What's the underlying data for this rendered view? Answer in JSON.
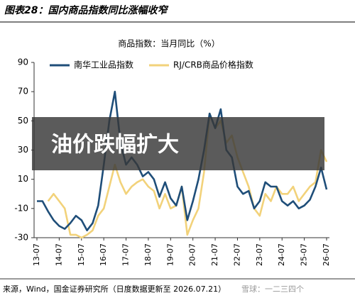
{
  "chart_data": {
    "type": "line",
    "title": "图表28：国内商品指数同比涨幅收窄",
    "ylabel": "商品指数：当月同比（%）",
    "categories": [
      "13-07",
      null,
      null,
      null,
      "14-07",
      null,
      null,
      null,
      "15-07",
      null,
      null,
      null,
      "16-07",
      null,
      null,
      null,
      "17-07",
      null,
      null,
      null,
      "18-07",
      null,
      null,
      null,
      "19-07",
      null,
      null,
      null,
      "20-07",
      null,
      null,
      null,
      "21-07",
      null,
      null,
      null,
      "22-07",
      null,
      null,
      null,
      "23-07",
      null,
      null,
      null,
      "24-07",
      null,
      null,
      null,
      "25-07",
      null,
      null,
      null,
      "26-07"
    ],
    "series": [
      {
        "name": "南华工业品指数",
        "color": "#1f4e79",
        "values": [
          -5,
          -5,
          -12,
          -18,
          -22,
          -24,
          -20,
          -15,
          -18,
          -25,
          -20,
          -8,
          20,
          50,
          70,
          35,
          20,
          25,
          20,
          12,
          15,
          10,
          -2,
          8,
          -3,
          -8,
          5,
          -18,
          -5,
          10,
          30,
          55,
          45,
          58,
          30,
          25,
          5,
          0,
          2,
          -10,
          -5,
          8,
          5,
          5,
          -5,
          -8,
          -5,
          -10,
          -8,
          -4,
          5,
          18,
          3
        ]
      },
      {
        "name": "RJ/CRB商品价格指数",
        "color": "#f2d27a",
        "values": [
          null,
          null,
          -5,
          0,
          -5,
          -10,
          -28,
          -28,
          -30,
          -28,
          -25,
          -15,
          -10,
          5,
          20,
          8,
          0,
          5,
          8,
          10,
          5,
          2,
          -10,
          0,
          -10,
          -8,
          5,
          -28,
          -18,
          -10,
          15,
          55,
          45,
          50,
          35,
          40,
          25,
          15,
          5,
          -10,
          -15,
          0,
          -5,
          5,
          0,
          0,
          5,
          -5,
          0,
          5,
          8,
          30,
          22
        ]
      }
    ],
    "ylim": [
      -30,
      90
    ],
    "yticks": [
      -30,
      -10,
      10,
      30,
      50,
      70,
      90
    ],
    "legend": "top",
    "source": "来源，Wind，国金证券研究所（日度数据更新至 2026.07.21）",
    "watermark": "雪球：一二三四个",
    "overlay": "油价跌幅扩大"
  }
}
